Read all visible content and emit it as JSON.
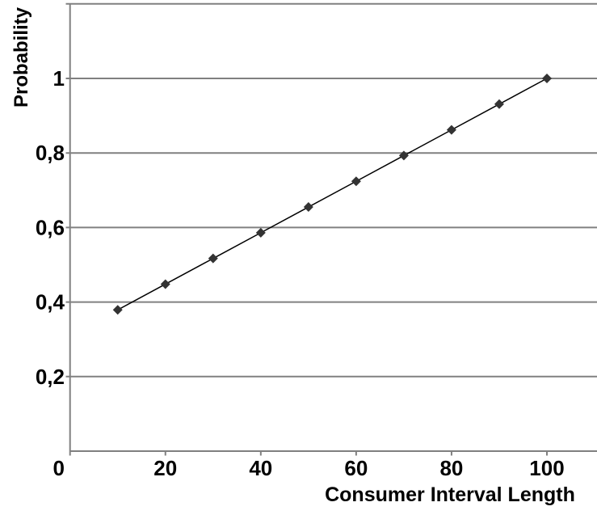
{
  "chart_data": {
    "type": "line",
    "title": "",
    "xlabel": "Consumer Interval Length",
    "ylabel": "Probability",
    "x": [
      10,
      20,
      30,
      40,
      50,
      60,
      70,
      80,
      90,
      100
    ],
    "series": [
      {
        "name": "Probability",
        "values": [
          0.379,
          0.448,
          0.517,
          0.586,
          0.655,
          0.724,
          0.793,
          0.862,
          0.931,
          1.0
        ],
        "line_color": "#000000",
        "marker": "diamond",
        "marker_color": "#333333"
      }
    ],
    "xlim": [
      0,
      110.5
    ],
    "ylim": [
      0,
      1.2
    ],
    "x_ticks": [
      {
        "value": 0,
        "label": "0"
      },
      {
        "value": 20,
        "label": "20"
      },
      {
        "value": 40,
        "label": "40"
      },
      {
        "value": 60,
        "label": "60"
      },
      {
        "value": 80,
        "label": "80"
      },
      {
        "value": 100,
        "label": "100"
      }
    ],
    "y_ticks": [
      {
        "value": 0.2,
        "label": "0,2"
      },
      {
        "value": 0.4,
        "label": "0,4"
      },
      {
        "value": 0.6,
        "label": "0,6"
      },
      {
        "value": 0.8,
        "label": "0,8"
      },
      {
        "value": 1.0,
        "label": "1"
      },
      {
        "value": 1.2,
        "label": ""
      }
    ],
    "decimal_separator": ",",
    "grid": true,
    "legend_position": "none",
    "colors": {
      "background": "#ffffff",
      "grid": "#808080",
      "axis": "#808080",
      "line": "#000000",
      "marker": "#333333",
      "text": "#000000"
    }
  }
}
